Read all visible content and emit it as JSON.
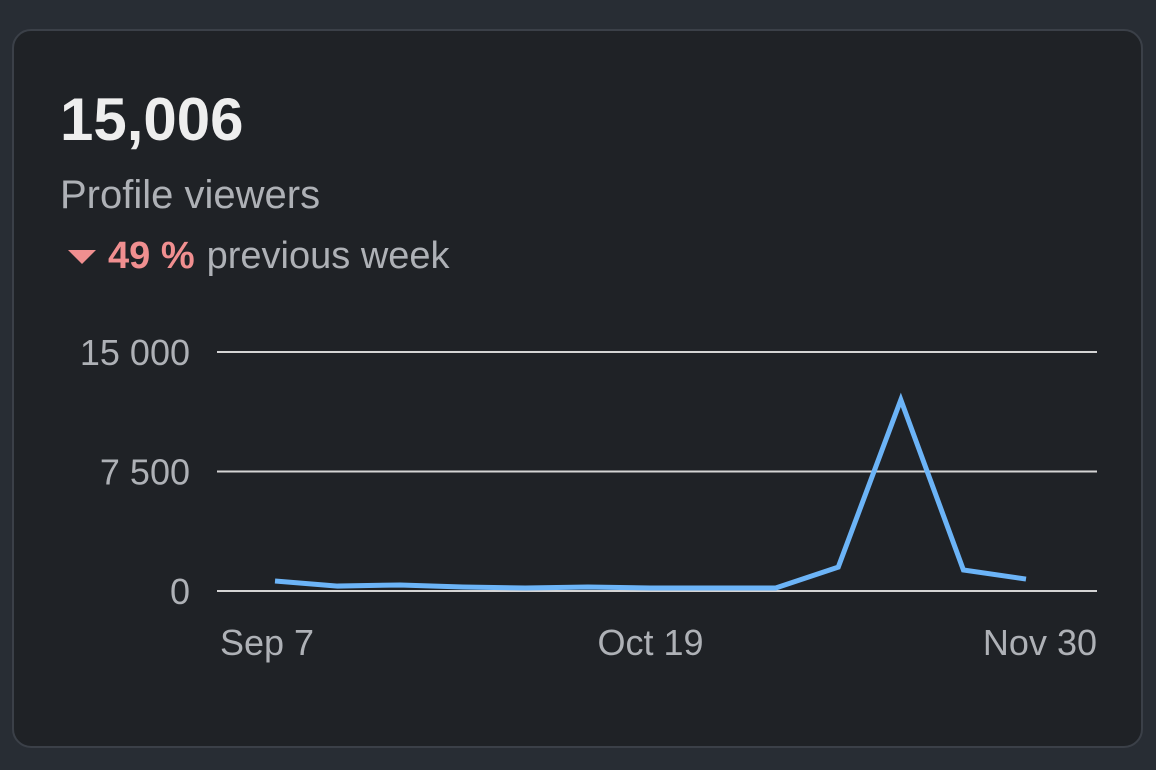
{
  "card": {
    "metric": "15,006",
    "label": "Profile viewers",
    "change": "49 %",
    "change_text": "previous week"
  },
  "chart_data": {
    "type": "line",
    "categories": [
      "Sep 7",
      null,
      null,
      null,
      null,
      null,
      "Oct 19",
      null,
      null,
      null,
      null,
      null,
      "Nov 30"
    ],
    "series": [
      {
        "color": "#6cb4f7",
        "values": [
          630,
          310,
          380,
          250,
          190,
          250,
          190,
          190,
          190,
          1500,
          12000,
          1320,
          750
        ]
      }
    ],
    "ylim": [
      0,
      15000
    ],
    "yticks": [
      {
        "value": 0,
        "label": "0"
      },
      {
        "value": 7500,
        "label": "7 500"
      },
      {
        "value": 15000,
        "label": "15 000"
      }
    ],
    "grid": true
  }
}
